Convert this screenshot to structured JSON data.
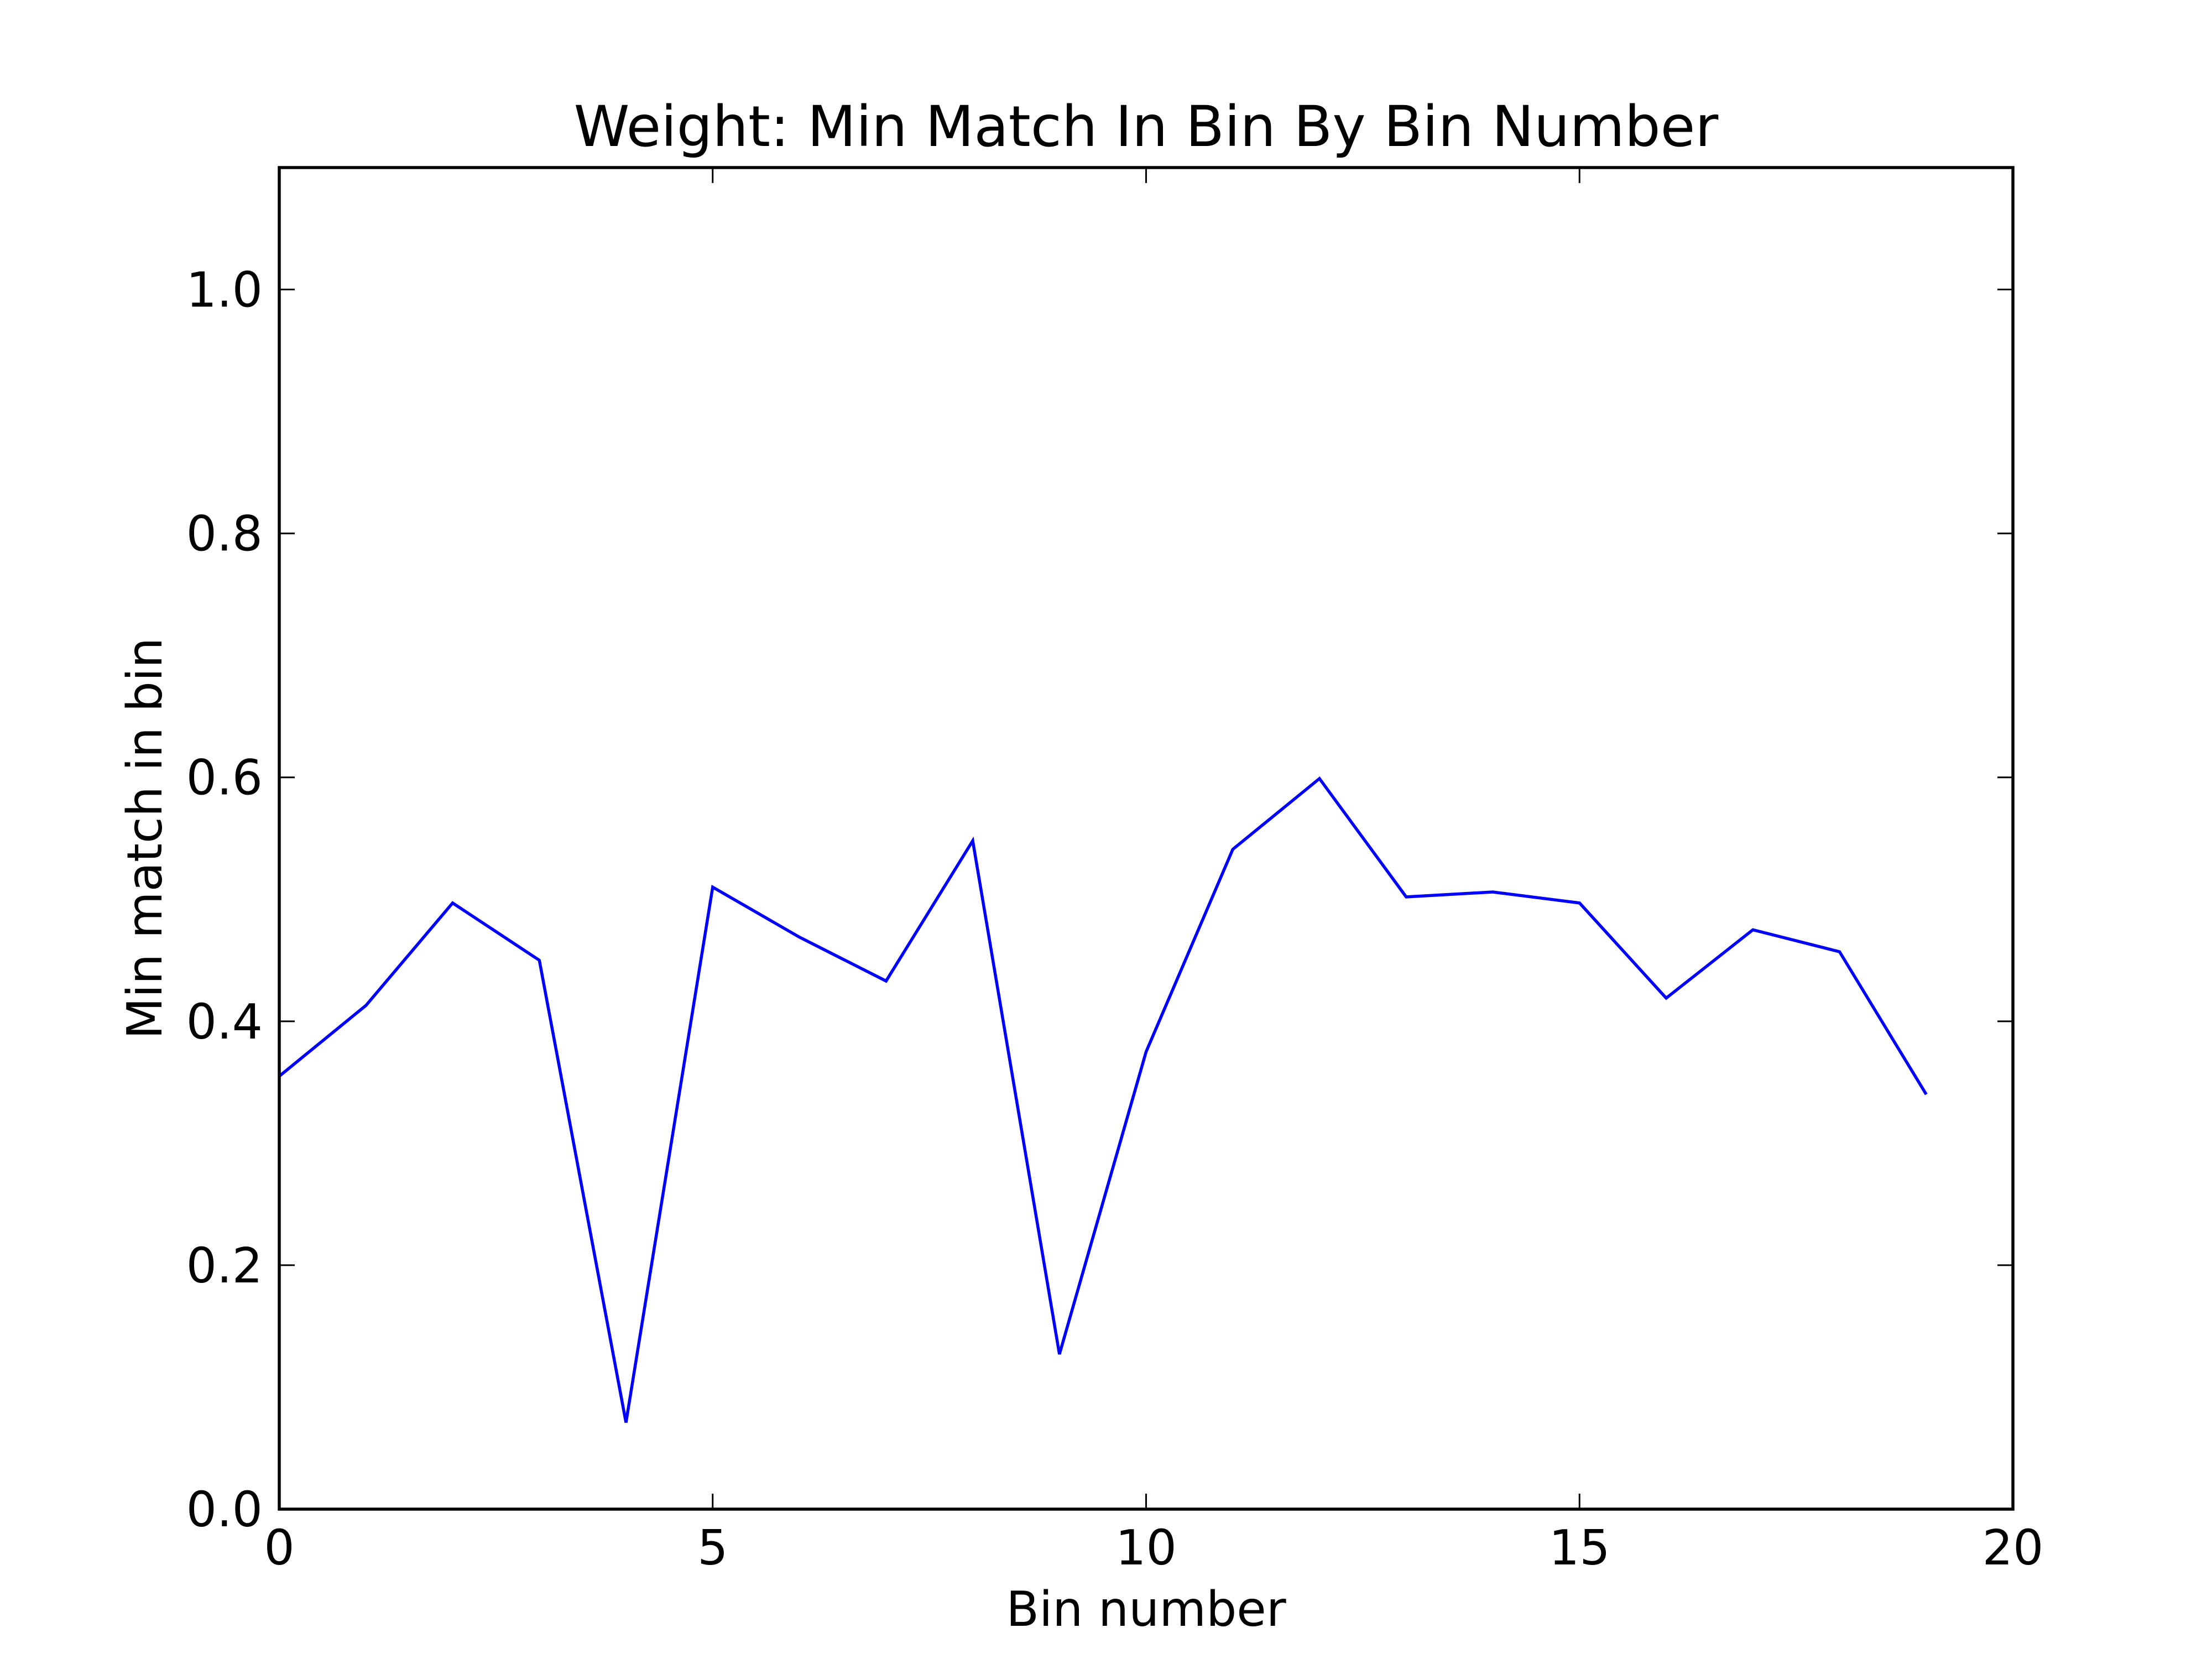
{
  "chart_data": {
    "type": "line",
    "title": "Weight: Min Match In Bin By Bin Number",
    "xlabel": "Bin number",
    "ylabel": "Min match in bin",
    "xlim": [
      0,
      20
    ],
    "ylim": [
      0.0,
      1.1
    ],
    "xticks": [
      0,
      5,
      10,
      15,
      20
    ],
    "xtick_labels": [
      "0",
      "5",
      "10",
      "15",
      "20"
    ],
    "yticks": [
      0.0,
      0.2,
      0.4,
      0.6,
      0.8,
      1.0
    ],
    "ytick_labels": [
      "0.0",
      "0.2",
      "0.4",
      "0.6",
      "0.8",
      "1.0"
    ],
    "grid": false,
    "legend": "none",
    "series": [
      {
        "color": "#0000ff",
        "x": [
          0,
          1,
          2,
          3,
          4,
          5,
          6,
          7,
          8,
          9,
          10,
          11,
          12,
          13,
          14,
          15,
          16,
          17,
          18,
          19
        ],
        "y": [
          0.355,
          0.413,
          0.497,
          0.45,
          0.071,
          0.51,
          0.469,
          0.433,
          0.548,
          0.127,
          0.375,
          0.541,
          0.599,
          0.502,
          0.506,
          0.497,
          0.419,
          0.475,
          0.457,
          0.34
        ]
      }
    ]
  }
}
